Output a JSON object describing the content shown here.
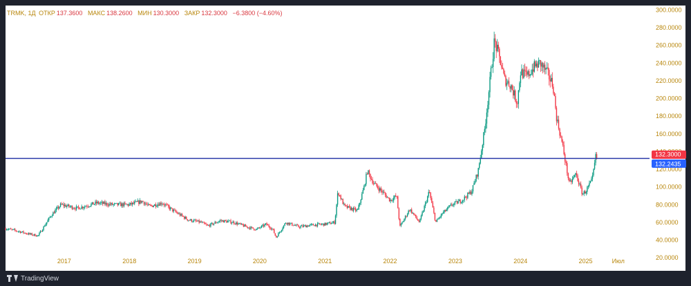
{
  "legend": {
    "symbol": "TRMK, 1Д",
    "open_label": "ОТКР",
    "open_value": "137.3600",
    "high_label": "МАКС",
    "high_value": "138.2600",
    "low_label": "МИН",
    "low_value": "130.3000",
    "close_label": "ЗАКР",
    "close_value": "132.3000",
    "change": "−6.3800 (−4.60%)"
  },
  "price_badges": {
    "last_price": "132.3000",
    "line_price": "132.2435"
  },
  "branding": {
    "logo_text": "TradingView"
  },
  "colors": {
    "up": "#089981",
    "down": "#f23645",
    "price_line": "#2b3aa8",
    "last_badge": "#f23645",
    "line_badge": "#2962ff",
    "axis_text": "#b8860b"
  },
  "chart_data": {
    "type": "candlestick",
    "ylim": [
      10,
      305
    ],
    "horizontal_line": 132.2435,
    "y_ticks": [
      "20.0000",
      "40.0000",
      "60.0000",
      "80.0000",
      "100.0000",
      "120.0000",
      "140.0000",
      "160.0000",
      "180.0000",
      "200.0000",
      "220.0000",
      "240.0000",
      "260.0000",
      "280.0000",
      "300.0000"
    ],
    "y_tick_values": [
      20,
      40,
      60,
      80,
      100,
      120,
      140,
      160,
      180,
      200,
      220,
      240,
      260,
      280,
      300
    ],
    "x_ticks": [
      "2017",
      "2018",
      "2019",
      "2020",
      "2021",
      "2022",
      "2023",
      "2024",
      "2025",
      "Июл"
    ],
    "x_tick_values": [
      2017.0,
      2018.0,
      2019.0,
      2020.0,
      2021.0,
      2022.0,
      2023.0,
      2024.0,
      2025.0,
      2025.5
    ],
    "xlim": [
      2016.1,
      2025.98
    ],
    "price_path": {
      "dates": [
        2016.1,
        2016.3,
        2016.45,
        2016.6,
        2016.8,
        2016.95,
        2017.2,
        2017.5,
        2017.75,
        2018.0,
        2018.2,
        2018.3,
        2018.5,
        2018.7,
        2018.9,
        2019.1,
        2019.2,
        2019.4,
        2019.6,
        2019.8,
        2019.95,
        2020.1,
        2020.2,
        2020.25,
        2020.4,
        2020.6,
        2020.8,
        2021.0,
        2021.15,
        2021.2,
        2021.3,
        2021.5,
        2021.6,
        2021.65,
        2021.75,
        2021.9,
        2022.0,
        2022.1,
        2022.15,
        2022.3,
        2022.45,
        2022.6,
        2022.7,
        2022.8,
        2022.95,
        2023.1,
        2023.25,
        2023.35,
        2023.45,
        2023.5,
        2023.6,
        2023.7,
        2023.75,
        2023.85,
        2023.95,
        2024.0,
        2024.1,
        2024.2,
        2024.3,
        2024.4,
        2024.5,
        2024.55,
        2024.65,
        2024.75,
        2024.85,
        2024.95,
        2025.0,
        2025.1,
        2025.17
      ],
      "values": [
        53,
        50,
        47,
        45,
        68,
        80,
        76,
        82,
        80,
        80,
        84,
        78,
        82,
        72,
        63,
        60,
        56,
        62,
        60,
        55,
        52,
        58,
        52,
        43,
        60,
        55,
        57,
        58,
        60,
        95,
        78,
        73,
        100,
        118,
        104,
        93,
        85,
        90,
        55,
        75,
        60,
        95,
        60,
        70,
        80,
        85,
        95,
        118,
        165,
        198,
        265,
        240,
        222,
        215,
        195,
        230,
        225,
        235,
        240,
        230,
        215,
        180,
        145,
        103,
        115,
        92,
        95,
        108,
        142
      ]
    }
  }
}
